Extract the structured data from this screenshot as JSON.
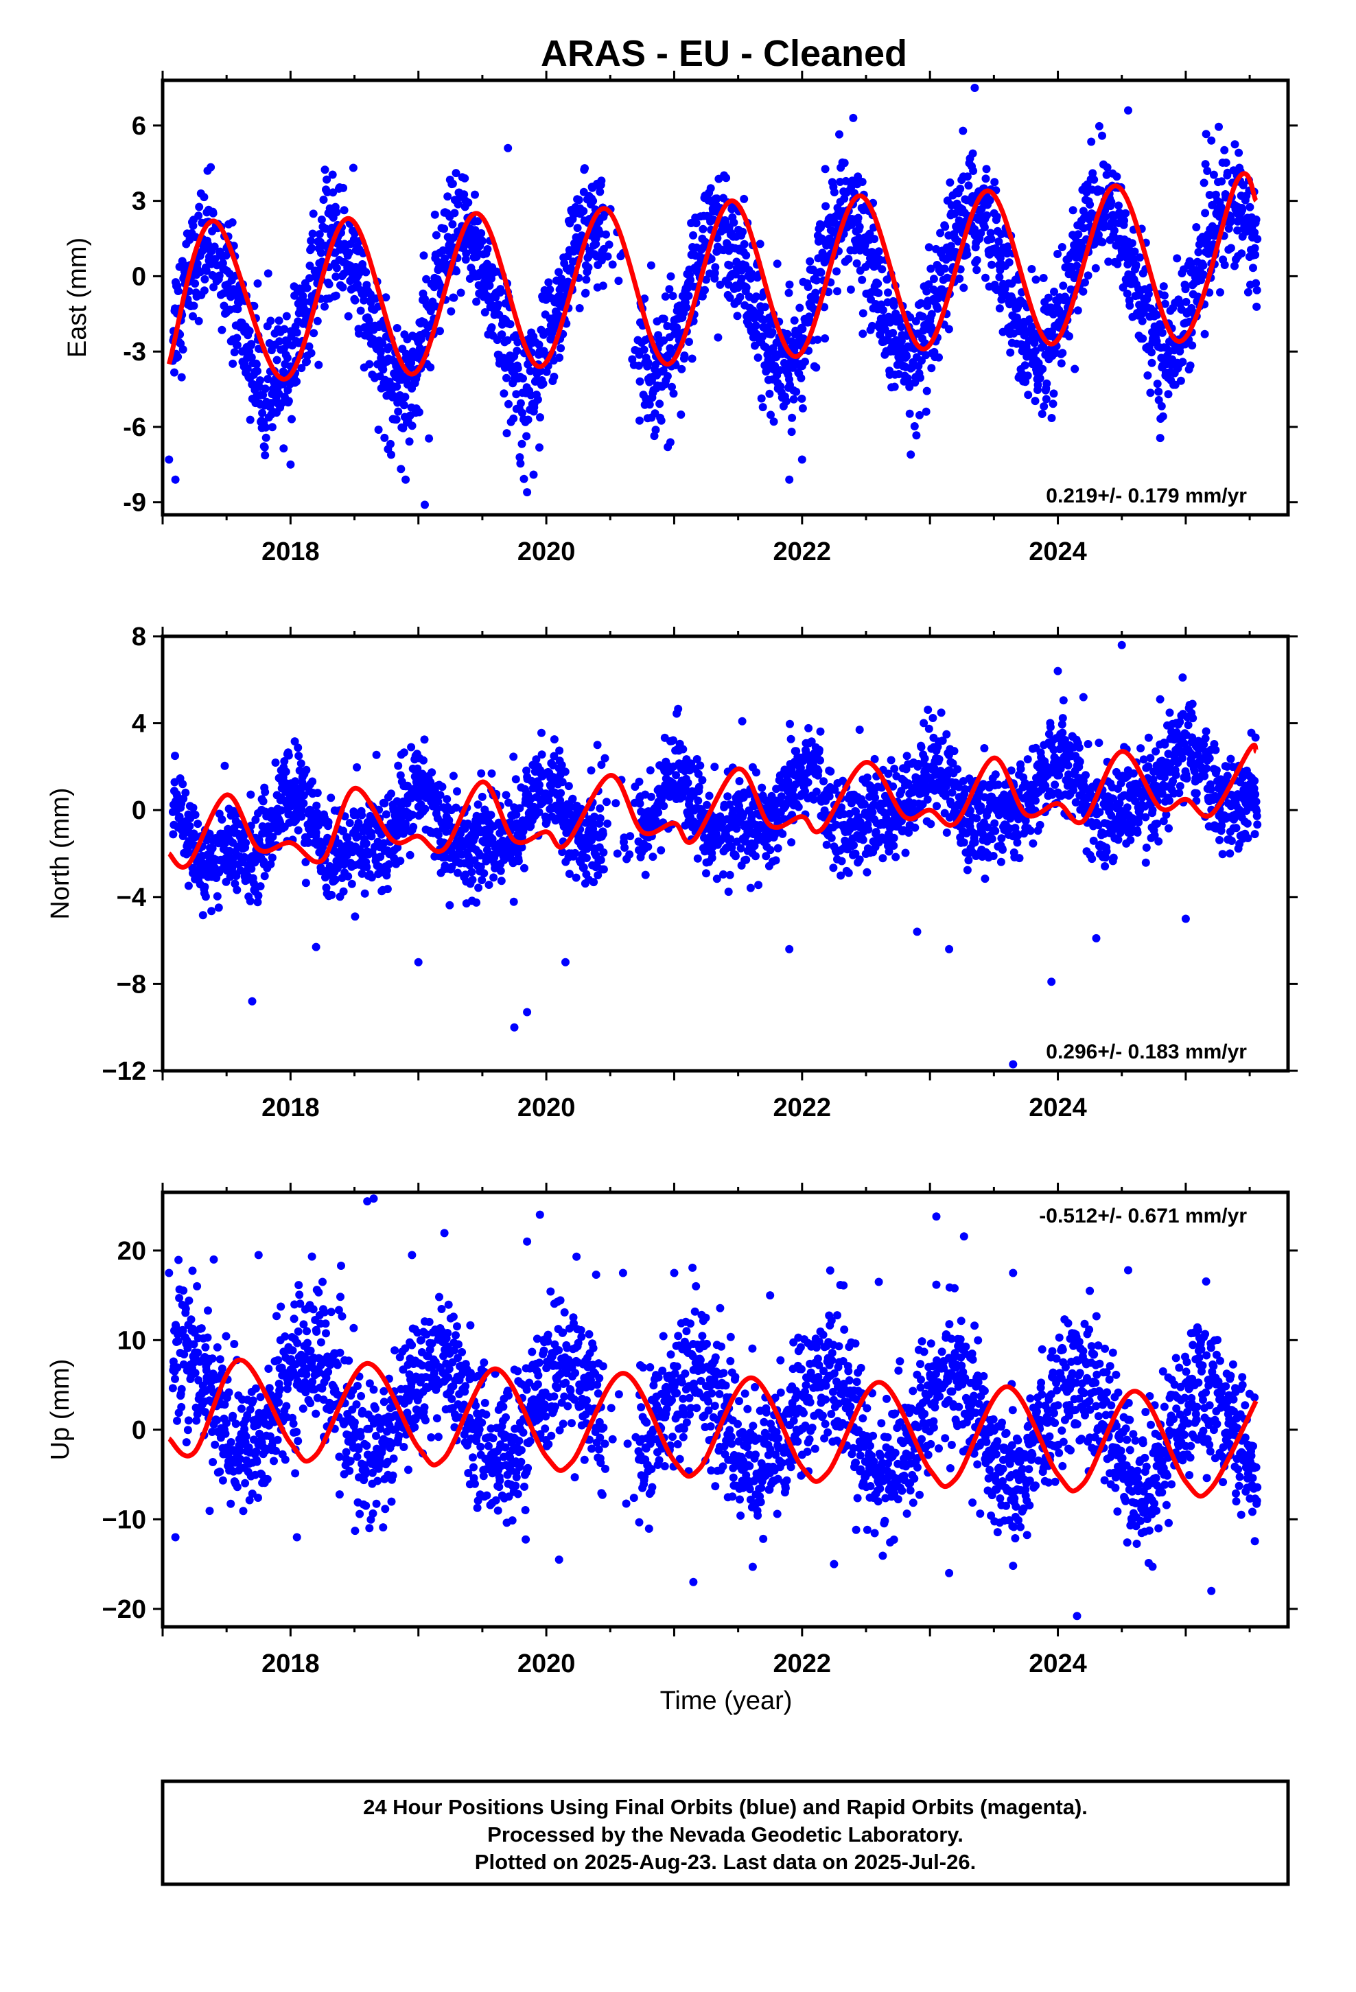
{
  "title": "ARAS  - EU - Cleaned",
  "colors": {
    "points": "#0000ff",
    "fit": "#ff0000",
    "frame": "#000000"
  },
  "chart_data": [
    {
      "type": "scatter",
      "name": "east",
      "ylabel": "East (mm)",
      "xlim": [
        2017.0,
        2025.8
      ],
      "ylim": [
        -9.5,
        7.8
      ],
      "yticks": [
        6,
        3,
        0,
        -3,
        -6,
        -9
      ],
      "ytick_labels": [
        "6",
        "3",
        "0",
        "-3",
        "-6",
        "-9"
      ],
      "xticks": [
        2018,
        2020,
        2022,
        2024
      ],
      "xtick_labels": [
        "2018",
        "2020",
        "2022",
        "2024"
      ],
      "rate_label": "0.219+/- 0.179 mm/yr",
      "rate_position": "bottom-right",
      "model": {
        "mean": -0.9,
        "trend": 0.219,
        "annual_amp": 2.9,
        "annual_phase": 1.1,
        "semi_amp": 0.0,
        "semi_phase": 0.0,
        "noise_sd": 1.2
      },
      "fit_points": [
        [
          2017.05,
          -3.5
        ],
        [
          2017.4,
          2.2
        ],
        [
          2017.95,
          -4.1
        ],
        [
          2018.45,
          2.3
        ],
        [
          2018.95,
          -3.9
        ],
        [
          2019.45,
          2.5
        ],
        [
          2019.95,
          -3.6
        ],
        [
          2020.45,
          2.7
        ],
        [
          2020.95,
          -3.5
        ],
        [
          2021.45,
          3.0
        ],
        [
          2021.95,
          -3.2
        ],
        [
          2022.45,
          3.2
        ],
        [
          2022.95,
          -2.9
        ],
        [
          2023.45,
          3.4
        ],
        [
          2023.95,
          -2.7
        ],
        [
          2024.45,
          3.6
        ],
        [
          2024.95,
          -2.6
        ],
        [
          2025.4,
          3.8
        ],
        [
          2025.55,
          3.0
        ]
      ],
      "outliers": [
        [
          2017.1,
          -8.1
        ],
        [
          2017.05,
          -7.3
        ],
        [
          2018.0,
          -7.5
        ],
        [
          2018.9,
          -8.1
        ],
        [
          2019.05,
          -9.1
        ],
        [
          2019.7,
          5.1
        ],
        [
          2019.85,
          -8.6
        ],
        [
          2019.9,
          -7.9
        ],
        [
          2020.3,
          4.3
        ],
        [
          2020.95,
          -6.8
        ],
        [
          2021.9,
          -8.1
        ],
        [
          2022.0,
          -7.3
        ],
        [
          2022.85,
          -7.1
        ],
        [
          2023.35,
          7.5
        ],
        [
          2024.55,
          6.6
        ],
        [
          2025.2,
          5.4
        ],
        [
          2022.4,
          6.3
        ]
      ]
    },
    {
      "type": "scatter",
      "name": "north",
      "ylabel": "North (mm)",
      "xlim": [
        2017.0,
        2025.8
      ],
      "ylim": [
        -12,
        8
      ],
      "yticks": [
        8,
        4,
        0,
        -4,
        -8,
        -12
      ],
      "ytick_labels": [
        "8",
        "4",
        "0",
        "−4",
        "−8",
        "−12"
      ],
      "xticks": [
        2018,
        2020,
        2022,
        2024
      ],
      "xtick_labels": [
        "2018",
        "2020",
        "2022",
        "2024"
      ],
      "rate_label": "0.296+/- 0.183 mm/yr",
      "rate_position": "bottom-right",
      "model": {
        "mean": -0.2,
        "trend": 0.296,
        "annual_amp": 1.2,
        "annual_phase": 0.75,
        "semi_amp": 0.6,
        "semi_phase": 0.4,
        "noise_sd": 1.1
      },
      "fit_points": [
        [
          2017.05,
          -2.0
        ],
        [
          2017.2,
          -2.5
        ],
        [
          2017.5,
          0.7
        ],
        [
          2017.75,
          -1.8
        ],
        [
          2018.0,
          -1.5
        ],
        [
          2018.25,
          -2.3
        ],
        [
          2018.5,
          1.0
        ],
        [
          2018.8,
          -1.4
        ],
        [
          2019.0,
          -1.2
        ],
        [
          2019.2,
          -1.8
        ],
        [
          2019.5,
          1.3
        ],
        [
          2019.75,
          -1.4
        ],
        [
          2020.0,
          -1.0
        ],
        [
          2020.15,
          -1.6
        ],
        [
          2020.5,
          1.6
        ],
        [
          2020.75,
          -1.0
        ],
        [
          2021.0,
          -0.6
        ],
        [
          2021.15,
          -1.4
        ],
        [
          2021.5,
          1.9
        ],
        [
          2021.75,
          -0.7
        ],
        [
          2022.0,
          -0.3
        ],
        [
          2022.15,
          -0.9
        ],
        [
          2022.5,
          2.2
        ],
        [
          2022.8,
          -0.3
        ],
        [
          2023.0,
          0.0
        ],
        [
          2023.2,
          -0.6
        ],
        [
          2023.5,
          2.4
        ],
        [
          2023.75,
          -0.2
        ],
        [
          2024.0,
          0.3
        ],
        [
          2024.2,
          -0.5
        ],
        [
          2024.5,
          2.7
        ],
        [
          2024.8,
          0.1
        ],
        [
          2025.0,
          0.5
        ],
        [
          2025.2,
          -0.2
        ],
        [
          2025.5,
          2.8
        ],
        [
          2025.55,
          2.7
        ]
      ],
      "outliers": [
        [
          2017.7,
          -8.8
        ],
        [
          2018.2,
          -6.3
        ],
        [
          2019.0,
          -7.0
        ],
        [
          2019.75,
          -10.0
        ],
        [
          2019.85,
          -9.3
        ],
        [
          2020.15,
          -7.0
        ],
        [
          2020.4,
          3.0
        ],
        [
          2021.9,
          -6.4
        ],
        [
          2022.9,
          -5.6
        ],
        [
          2023.15,
          -6.4
        ],
        [
          2023.65,
          -11.7
        ],
        [
          2023.95,
          -7.9
        ],
        [
          2024.0,
          6.4
        ],
        [
          2024.2,
          5.2
        ],
        [
          2024.5,
          7.6
        ],
        [
          2024.3,
          -5.9
        ],
        [
          2025.0,
          -5.0
        ],
        [
          2022.45,
          3.7
        ],
        [
          2024.8,
          5.1
        ]
      ]
    },
    {
      "type": "scatter",
      "name": "up",
      "ylabel": "Up (mm)",
      "xlabel": "Time (year)",
      "xlim": [
        2017.0,
        2025.8
      ],
      "ylim": [
        -22,
        26.5
      ],
      "yticks": [
        20,
        10,
        0,
        -10,
        -20
      ],
      "ytick_labels": [
        "20",
        "10",
        "0",
        "−10",
        "−20"
      ],
      "xticks": [
        2018,
        2020,
        2022,
        2024
      ],
      "xtick_labels": [
        "2018",
        "2020",
        "2022",
        "2024"
      ],
      "rate_label": "-0.512+/- 0.671 mm/yr",
      "rate_position": "top-right",
      "model": {
        "mean": 1.5,
        "trend": -0.512,
        "annual_amp": 5.5,
        "annual_phase": 1.9,
        "semi_amp": 0.0,
        "semi_phase": 0.0,
        "noise_sd": 4.0
      },
      "fit_points": [
        [
          2017.05,
          -1.0
        ],
        [
          2017.25,
          -2.5
        ],
        [
          2017.6,
          7.8
        ],
        [
          2018.0,
          -1.5
        ],
        [
          2018.2,
          -2.8
        ],
        [
          2018.6,
          7.4
        ],
        [
          2019.0,
          -2.0
        ],
        [
          2019.2,
          -3.2
        ],
        [
          2019.6,
          6.8
        ],
        [
          2020.0,
          -3.0
        ],
        [
          2020.2,
          -3.6
        ],
        [
          2020.6,
          6.3
        ],
        [
          2021.0,
          -3.5
        ],
        [
          2021.2,
          -4.3
        ],
        [
          2021.6,
          5.8
        ],
        [
          2022.0,
          -4.2
        ],
        [
          2022.2,
          -4.8
        ],
        [
          2022.6,
          5.3
        ],
        [
          2023.0,
          -4.5
        ],
        [
          2023.2,
          -5.5
        ],
        [
          2023.6,
          4.8
        ],
        [
          2024.0,
          -5.0
        ],
        [
          2024.2,
          -6.0
        ],
        [
          2024.6,
          4.3
        ],
        [
          2025.0,
          -5.8
        ],
        [
          2025.2,
          -6.5
        ],
        [
          2025.55,
          3.2
        ]
      ],
      "outliers": [
        [
          2017.05,
          17.5
        ],
        [
          2017.4,
          19.0
        ],
        [
          2017.75,
          19.5
        ],
        [
          2018.25,
          16.5
        ],
        [
          2018.6,
          25.5
        ],
        [
          2018.65,
          25.8
        ],
        [
          2018.95,
          19.5
        ],
        [
          2019.85,
          21.0
        ],
        [
          2019.95,
          24.0
        ],
        [
          2020.6,
          17.5
        ],
        [
          2021.0,
          17.5
        ],
        [
          2021.75,
          15.0
        ],
        [
          2022.6,
          16.5
        ],
        [
          2023.05,
          23.8
        ],
        [
          2023.15,
          -16.0
        ],
        [
          2023.65,
          17.5
        ],
        [
          2024.15,
          -20.8
        ],
        [
          2024.25,
          15.5
        ],
        [
          2024.55,
          17.8
        ],
        [
          2025.2,
          -18.0
        ],
        [
          2020.1,
          -14.5
        ],
        [
          2021.15,
          -17.0
        ],
        [
          2022.25,
          -15.0
        ],
        [
          2018.05,
          -12.0
        ],
        [
          2017.1,
          -12.0
        ]
      ]
    }
  ],
  "footer": {
    "line1": "24 Hour Positions Using Final Orbits (blue) and Rapid Orbits (magenta).",
    "line2": "Processed by the Nevada Geodetic Laboratory.",
    "line3": "Plotted on 2025-Aug-23. Last data on 2025-Jul-26."
  }
}
